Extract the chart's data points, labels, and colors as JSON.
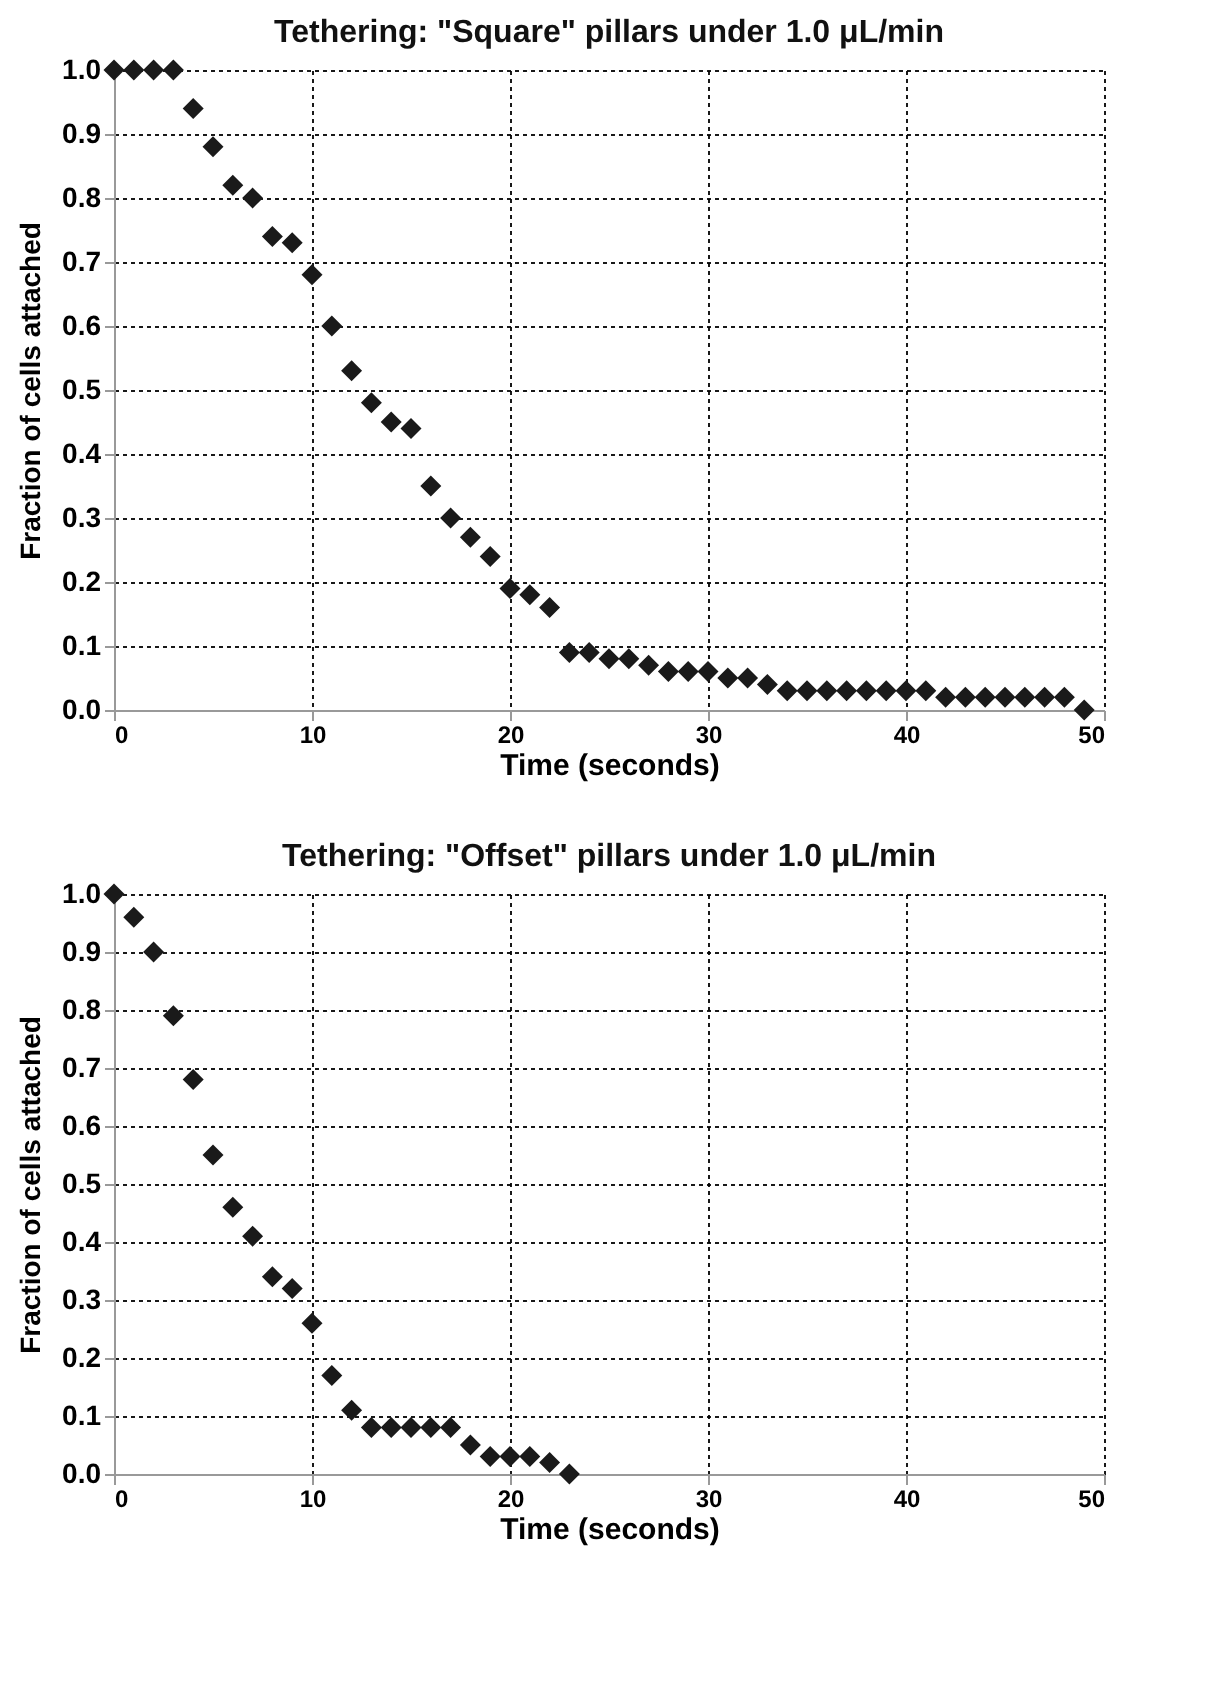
{
  "chart_data": [
    {
      "type": "scatter",
      "title": "Tethering: \"Square\" pillars under 1.0 μL/min",
      "xlabel": "Time (seconds)",
      "ylabel": "Fraction of cells attached",
      "color": "#1a1a1a",
      "marker": "diamond",
      "grid": true,
      "x": [
        0,
        1,
        2,
        3,
        4,
        5,
        6,
        7,
        8,
        9,
        10,
        11,
        12,
        13,
        14,
        15,
        16,
        17,
        18,
        19,
        20,
        21,
        22,
        23,
        24,
        25,
        26,
        27,
        28,
        29,
        30,
        31,
        32,
        33,
        34,
        35,
        36,
        37,
        38,
        39,
        40,
        41,
        42,
        43,
        44,
        45,
        46,
        47,
        48,
        49
      ],
      "values": [
        1,
        1,
        1,
        1,
        0.94,
        0.88,
        0.82,
        0.8,
        0.74,
        0.73,
        0.68,
        0.6,
        0.53,
        0.48,
        0.45,
        0.44,
        0.35,
        0.3,
        0.27,
        0.24,
        0.19,
        0.18,
        0.16,
        0.09,
        0.09,
        0.08,
        0.08,
        0.07,
        0.06,
        0.06,
        0.06,
        0.05,
        0.05,
        0.04,
        0.03,
        0.03,
        0.03,
        0.03,
        0.03,
        0.03,
        0.03,
        0.03,
        0.02,
        0.02,
        0.02,
        0.02,
        0.02,
        0.02,
        0.02,
        0.0
      ],
      "xlim": [
        0,
        50
      ],
      "xticks": [
        0,
        10,
        20,
        30,
        40,
        50
      ],
      "ylim": [
        0,
        1
      ],
      "yticks": [
        {
          "value": 0,
          "label": "0.0"
        },
        {
          "value": 0.1,
          "label": "0.1"
        },
        {
          "value": 0.2,
          "label": "0.2"
        },
        {
          "value": 0.3,
          "label": "0.3"
        },
        {
          "value": 0.4,
          "label": "0.4"
        },
        {
          "value": 0.5,
          "label": "0.5"
        },
        {
          "value": 0.6,
          "label": "0.6"
        },
        {
          "value": 0.7,
          "label": "0.7"
        },
        {
          "value": 0.8,
          "label": "0.8"
        },
        {
          "value": 0.9,
          "label": "0.9"
        },
        {
          "value": 1,
          "label": "1.0"
        }
      ]
    },
    {
      "type": "scatter",
      "title": "Tethering: \"Offset\" pillars under 1.0 μL/min",
      "xlabel": "Time (seconds)",
      "ylabel": "Fraction of cells attached",
      "color": "#1a1a1a",
      "marker": "diamond",
      "grid": true,
      "x": [
        0,
        1,
        2,
        3,
        4,
        5,
        6,
        7,
        8,
        9,
        10,
        11,
        12,
        13,
        14,
        15,
        16,
        17,
        18,
        19,
        20,
        21,
        22,
        23
      ],
      "values": [
        1,
        0.96,
        0.9,
        0.79,
        0.68,
        0.55,
        0.46,
        0.41,
        0.34,
        0.32,
        0.26,
        0.17,
        0.11,
        0.08,
        0.08,
        0.08,
        0.08,
        0.08,
        0.05,
        0.03,
        0.03,
        0.03,
        0.02,
        0.0
      ],
      "xlim": [
        0,
        50
      ],
      "xticks": [
        0,
        10,
        20,
        30,
        40,
        50
      ],
      "ylim": [
        0,
        1
      ],
      "yticks": [
        {
          "value": 0,
          "label": "0.0"
        },
        {
          "value": 0.1,
          "label": "0.1"
        },
        {
          "value": 0.2,
          "label": "0.2"
        },
        {
          "value": 0.3,
          "label": "0.3"
        },
        {
          "value": 0.4,
          "label": "0.4"
        },
        {
          "value": 0.5,
          "label": "0.5"
        },
        {
          "value": 0.6,
          "label": "0.6"
        },
        {
          "value": 0.7,
          "label": "0.7"
        },
        {
          "value": 0.8,
          "label": "0.8"
        },
        {
          "value": 0.9,
          "label": "0.9"
        },
        {
          "value": 1,
          "label": "1.0"
        }
      ]
    }
  ]
}
